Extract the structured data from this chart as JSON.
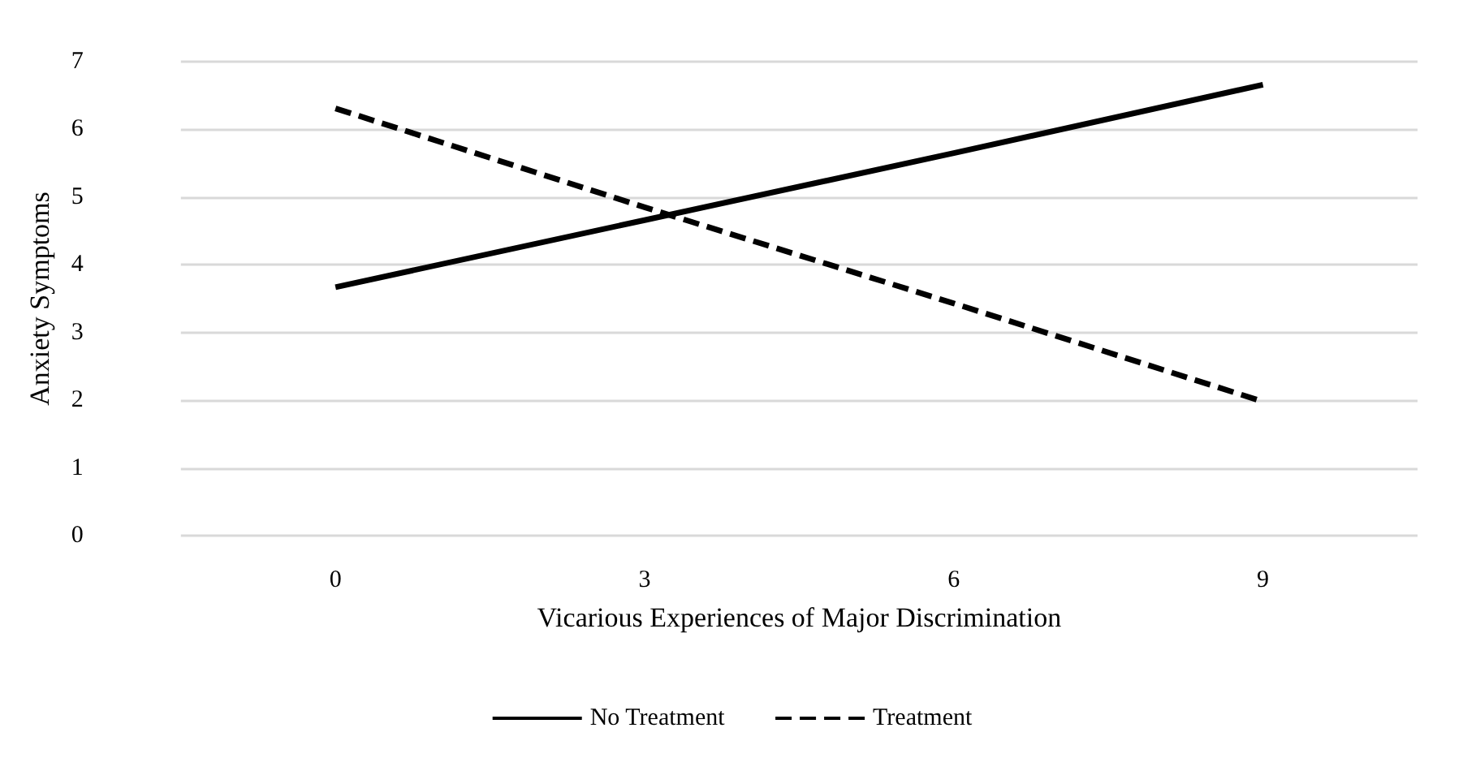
{
  "chart_data": {
    "type": "line",
    "xlabel": "Vicarious Experiences of Major Discrimination",
    "ylabel": "Anxiety Symptoms",
    "categories": [
      "0",
      "3",
      "6",
      "9"
    ],
    "series": [
      {
        "name": "No Treatment",
        "color": "#000000",
        "line_style": "solid",
        "values": [
          3.67,
          4.66,
          5.65,
          6.66
        ]
      },
      {
        "name": "Treatment",
        "color": "#000000",
        "line_style": "dashed",
        "values": [
          6.31,
          4.85,
          3.43,
          1.98
        ]
      }
    ],
    "ylim": [
      0,
      7
    ],
    "yticks": [
      0,
      1,
      2,
      3,
      4,
      5,
      6,
      7
    ],
    "grid": "y",
    "legend": "bottom",
    "marker": "none"
  }
}
